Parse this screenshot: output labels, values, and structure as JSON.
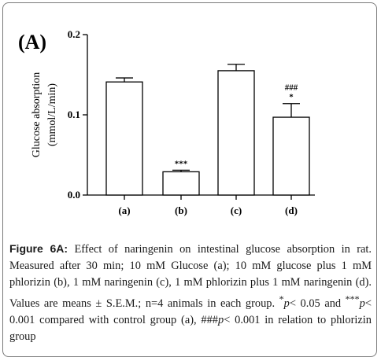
{
  "chart_data": {
    "type": "bar",
    "panel_label": "(A)",
    "title": "",
    "xlabel": "",
    "ylabel_line1": "Glucose absorption",
    "ylabel_line2": "(mmol/L/min)",
    "ylim": [
      0.0,
      0.2
    ],
    "yticks": [
      {
        "value": 0.0,
        "label": "0.0"
      },
      {
        "value": 0.1,
        "label": "0.1"
      },
      {
        "value": 0.2,
        "label": "0.2"
      }
    ],
    "categories": [
      "(a)",
      "(b)",
      "(c)",
      "(d)"
    ],
    "values": [
      0.141,
      0.029,
      0.155,
      0.097
    ],
    "errors": [
      0.005,
      0.002,
      0.008,
      0.017
    ],
    "annotations": [
      {
        "category": 1,
        "lines": [
          "***"
        ]
      },
      {
        "category": 3,
        "lines": [
          "###",
          "*"
        ]
      }
    ],
    "bar_fill": "#ffffff",
    "bar_stroke": "#000000",
    "grid": false,
    "legend": "none"
  },
  "caption": {
    "lead": "Figure 6A:",
    "line1": " Effect of naringenin on intestinal glucose absorption in rat. Measured after 30 min; 10 mM Glucose (a); 10 mM glucose plus 1 mM phlorizin (b), 1 mM naringenin (c), 1 mM phlorizin plus 1 mM naringenin (d). Values are means ± S.E.M.; n=4 animals in each group. ",
    "sig1_mark": "*",
    "sig1_p": "p",
    "sig1_text": "< 0.05 and ",
    "sig2_mark": "***",
    "sig2_p": "p",
    "sig2_text": "< 0.001 compared with control group (a), ",
    "sig3_mark": "###",
    "sig3_p": "p",
    "sig3_text": "< 0.001 in relation to phlorizin group"
  }
}
